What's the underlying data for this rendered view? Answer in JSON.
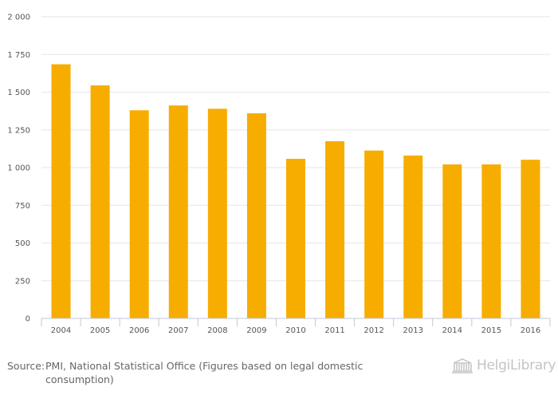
{
  "chart_data": {
    "type": "bar",
    "categories": [
      "2004",
      "2005",
      "2006",
      "2007",
      "2008",
      "2009",
      "2010",
      "2011",
      "2012",
      "2013",
      "2014",
      "2015",
      "2016"
    ],
    "values": [
      1685,
      1545,
      1380,
      1412,
      1390,
      1360,
      1058,
      1175,
      1113,
      1080,
      1021,
      1021,
      1052
    ],
    "y_ticks": [
      "0",
      "250",
      "500",
      "750",
      "1 000",
      "1 250",
      "1 500",
      "1 750",
      "2 000"
    ],
    "ylim": [
      0,
      2000
    ],
    "title": "",
    "xlabel": "",
    "ylabel": "",
    "grid": true,
    "bar_color": "#F7AD00"
  },
  "footer": {
    "source_label": "Source:",
    "source_text": "PMI, National Statistical Office (Figures based on legal domestic consumption)",
    "logo_text": "HelgiLibrary"
  }
}
